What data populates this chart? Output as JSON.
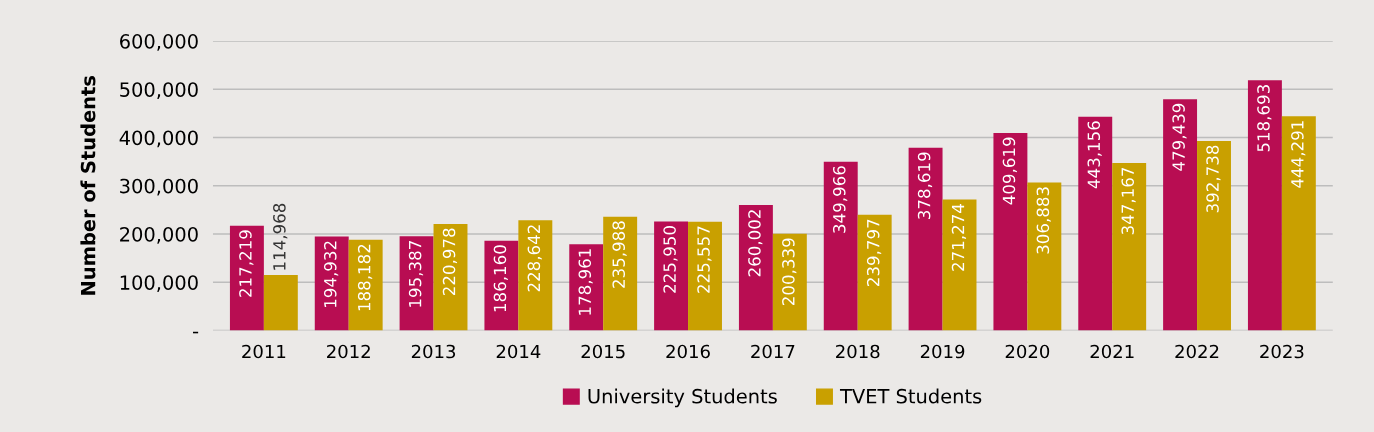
{
  "chart_data": {
    "type": "bar",
    "ylabel": "Number of Students",
    "categories": [
      "2011",
      "2012",
      "2013",
      "2014",
      "2015",
      "2016",
      "2017",
      "2018",
      "2019",
      "2020",
      "2021",
      "2022",
      "2023"
    ],
    "series": [
      {
        "name": "University Students",
        "color": "#b80d52",
        "values": [
          217219,
          194932,
          195387,
          186160,
          178961,
          225950,
          260002,
          349966,
          378619,
          409619,
          443156,
          479439,
          518693
        ],
        "value_labels": [
          "217,219",
          "194,932",
          "195,387",
          "186,160",
          "178,961",
          "225,950",
          "260,002",
          "349,966",
          "378,619",
          "409,619",
          "443,156",
          "479,439",
          "518,693"
        ]
      },
      {
        "name": "TVET Students",
        "color": "#c9a000",
        "values": [
          114968,
          188182,
          220978,
          228642,
          235988,
          225557,
          200339,
          239797,
          271274,
          306883,
          347167,
          392738,
          444291
        ],
        "value_labels": [
          "114,968",
          "188,182",
          "220,978",
          "228,642",
          "235,988",
          "225,557",
          "200,339",
          "239,797",
          "271,274",
          "306,883",
          "347,167",
          "392,738",
          "444,291"
        ]
      }
    ],
    "ylim": [
      0,
      600000
    ],
    "yticks": [
      {
        "value": 0,
        "label": "-"
      },
      {
        "value": 100000,
        "label": "100,000"
      },
      {
        "value": 200000,
        "label": "200,000"
      },
      {
        "value": 300000,
        "label": "300,000"
      },
      {
        "value": 400000,
        "label": "400,000"
      },
      {
        "value": 500000,
        "label": "500,000"
      },
      {
        "value": 600000,
        "label": "600,000"
      }
    ],
    "grid": "y",
    "legend": "bottom"
  }
}
